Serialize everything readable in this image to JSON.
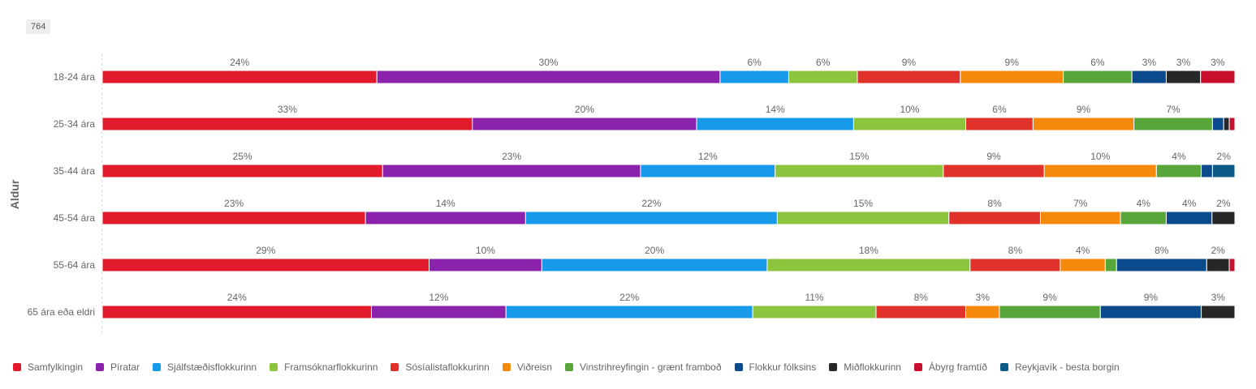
{
  "badge": "764",
  "chart_data": {
    "type": "bar",
    "orientation": "horizontal",
    "stacked": "percent",
    "ylabel": "Aldur",
    "xlabel": "",
    "categories": [
      "18-24 ára",
      "25-34 ára",
      "35-44 ára",
      "45-54 ára",
      "55-64 ára",
      "65 ára eða eldri"
    ],
    "series": [
      {
        "name": "Samfylkingin",
        "color": "#e11b2c",
        "values": [
          24,
          33,
          25,
          23,
          29,
          24
        ]
      },
      {
        "name": "Píratar",
        "color": "#8a22ac",
        "values": [
          30,
          20,
          23,
          14,
          10,
          12
        ]
      },
      {
        "name": "Sjálfstæðisflokkurinn",
        "color": "#169ae9",
        "values": [
          6,
          14,
          12,
          22,
          20,
          22
        ]
      },
      {
        "name": "Framsóknarflokkurinn",
        "color": "#8cc43d",
        "values": [
          6,
          10,
          15,
          15,
          18,
          11
        ]
      },
      {
        "name": "Sósíalistaflokkurinn",
        "color": "#e0312b",
        "values": [
          9,
          6,
          9,
          8,
          8,
          8
        ]
      },
      {
        "name": "Viðreisn",
        "color": "#f5890c",
        "values": [
          9,
          9,
          10,
          7,
          4,
          3
        ]
      },
      {
        "name": "Vinstrihreyfingin - grænt framboð",
        "color": "#58a53a",
        "values": [
          6,
          7,
          4,
          4,
          1,
          9
        ]
      },
      {
        "name": "Flokkur fólksins",
        "color": "#0b4a8d",
        "values": [
          3,
          1,
          1,
          4,
          8,
          9
        ]
      },
      {
        "name": "Miðflokkurinn",
        "color": "#272727",
        "values": [
          3,
          0.5,
          0,
          2,
          2,
          3
        ]
      },
      {
        "name": "Ábyrg framtíð",
        "color": "#c8102e",
        "values": [
          3,
          0.5,
          0,
          0,
          0.5,
          0
        ]
      },
      {
        "name": "Reykjavík - besta borgin",
        "color": "#0c5a86",
        "values": [
          0,
          0,
          2,
          0,
          0,
          0
        ]
      }
    ],
    "data_labels": [
      [
        "24%",
        "30%",
        "6%",
        "6%",
        "9%",
        "9%",
        "6%",
        "3%",
        "3%",
        "3%",
        ""
      ],
      [
        "33%",
        "20%",
        "14%",
        "10%",
        "6%",
        "9%",
        "7%",
        "",
        "",
        "",
        ""
      ],
      [
        "25%",
        "23%",
        "12%",
        "15%",
        "9%",
        "10%",
        "4%",
        "",
        "",
        "",
        "2%"
      ],
      [
        "23%",
        "14%",
        "22%",
        "15%",
        "8%",
        "7%",
        "4%",
        "4%",
        "2%",
        "",
        ""
      ],
      [
        "29%",
        "10%",
        "20%",
        "18%",
        "8%",
        "4%",
        "",
        "8%",
        "2%",
        "",
        ""
      ],
      [
        "24%",
        "12%",
        "22%",
        "11%",
        "8%",
        "3%",
        "9%",
        "9%",
        "3%",
        "",
        ""
      ]
    ],
    "xlim": [
      0,
      100
    ],
    "grid": false,
    "legend_position": "bottom"
  }
}
